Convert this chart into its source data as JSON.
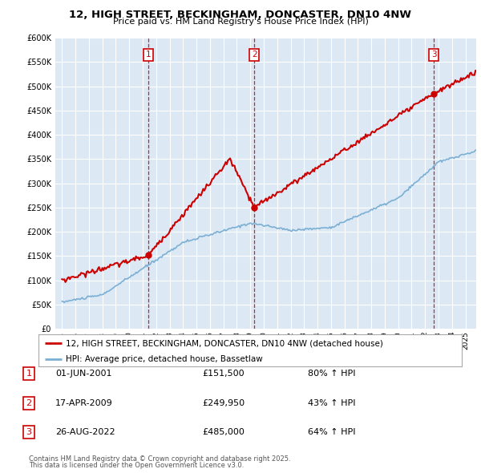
{
  "title1": "12, HIGH STREET, BECKINGHAM, DONCASTER, DN10 4NW",
  "title2": "Price paid vs. HM Land Registry's House Price Index (HPI)",
  "plot_bg_color": "#dce9f5",
  "fig_bg_color": "#ffffff",
  "ylim": [
    0,
    600000
  ],
  "yticks": [
    0,
    50000,
    100000,
    150000,
    200000,
    250000,
    300000,
    350000,
    400000,
    450000,
    500000,
    550000,
    600000
  ],
  "ytick_labels": [
    "£0",
    "£50K",
    "£100K",
    "£150K",
    "£200K",
    "£250K",
    "£300K",
    "£350K",
    "£400K",
    "£450K",
    "£500K",
    "£550K",
    "£600K"
  ],
  "grid_color": "#ffffff",
  "red_line_color": "#cc0000",
  "blue_line_color": "#7bafd4",
  "vline_color": "#cc0000",
  "transactions": [
    {
      "num": 1,
      "date_x": 2001.42,
      "price": 151500,
      "label": "01-JUN-2001",
      "price_str": "£151,500",
      "hpi_str": "80% ↑ HPI"
    },
    {
      "num": 2,
      "date_x": 2009.29,
      "price": 249950,
      "label": "17-APR-2009",
      "price_str": "£249,950",
      "hpi_str": "43% ↑ HPI"
    },
    {
      "num": 3,
      "date_x": 2022.65,
      "price": 485000,
      "label": "26-AUG-2022",
      "price_str": "£485,000",
      "hpi_str": "64% ↑ HPI"
    }
  ],
  "legend_label_red": "12, HIGH STREET, BECKINGHAM, DONCASTER, DN10 4NW (detached house)",
  "legend_label_blue": "HPI: Average price, detached house, Bassetlaw",
  "footer1": "Contains HM Land Registry data © Crown copyright and database right 2025.",
  "footer2": "This data is licensed under the Open Government Licence v3.0.",
  "xlim_start": 1994.5,
  "xlim_end": 2025.8
}
